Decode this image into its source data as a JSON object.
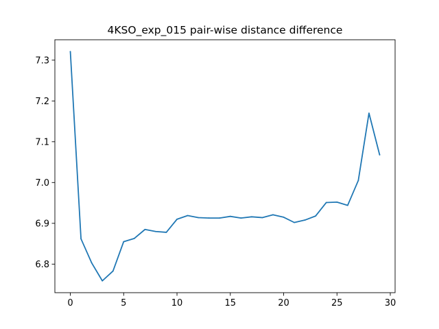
{
  "chart_data": {
    "type": "line",
    "title": "4KSO_exp_015 pair-wise distance difference",
    "xlabel": "",
    "ylabel": "",
    "xlim": [
      -1.45,
      30.45
    ],
    "ylim": [
      6.73,
      7.35
    ],
    "xticks": [
      0,
      5,
      10,
      15,
      20,
      25,
      30
    ],
    "yticks": [
      6.8,
      6.9,
      7.0,
      7.1,
      7.2,
      7.3
    ],
    "grid": false,
    "line_color": "#1f77b4",
    "series": [
      {
        "x": [
          0,
          1,
          2,
          3,
          4,
          5,
          6,
          7,
          8,
          9,
          10,
          11,
          12,
          13,
          14,
          15,
          16,
          17,
          18,
          19,
          20,
          21,
          22,
          23,
          24,
          25,
          26,
          27,
          28,
          29
        ],
        "values": [
          7.321,
          6.862,
          6.803,
          6.759,
          6.783,
          6.855,
          6.863,
          6.885,
          6.88,
          6.878,
          6.91,
          6.919,
          6.914,
          6.913,
          6.913,
          6.917,
          6.913,
          6.916,
          6.914,
          6.921,
          6.915,
          6.902,
          6.908,
          6.918,
          6.951,
          6.952,
          6.944,
          7.005,
          7.17,
          7.068
        ]
      }
    ]
  }
}
